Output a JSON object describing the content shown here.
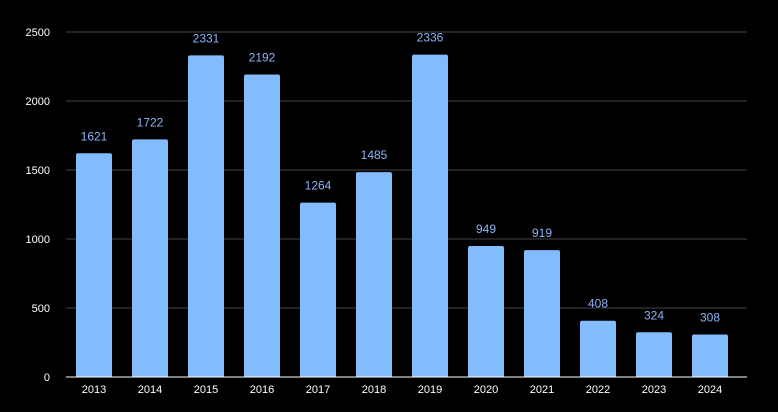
{
  "chart_data": {
    "type": "bar",
    "title": "",
    "xlabel": "",
    "ylabel": "",
    "categories": [
      "2013",
      "2014",
      "2015",
      "2016",
      "2017",
      "2018",
      "2019",
      "2020",
      "2021",
      "2022",
      "2023",
      "2024"
    ],
    "values": [
      1621,
      1722,
      2331,
      2192,
      1264,
      1485,
      2336,
      949,
      919,
      408,
      324,
      308
    ],
    "ylim": [
      0,
      2500
    ],
    "yticks": [
      0,
      500,
      1000,
      1500,
      2000,
      2500
    ],
    "grid": true,
    "legend": "none",
    "colors": {
      "background": "#000000",
      "bar": "#82bcfd",
      "data_label": "#8ab4f8",
      "tick_label": "#ffffff",
      "grid": "#444444",
      "axis": "#ffffff"
    }
  }
}
